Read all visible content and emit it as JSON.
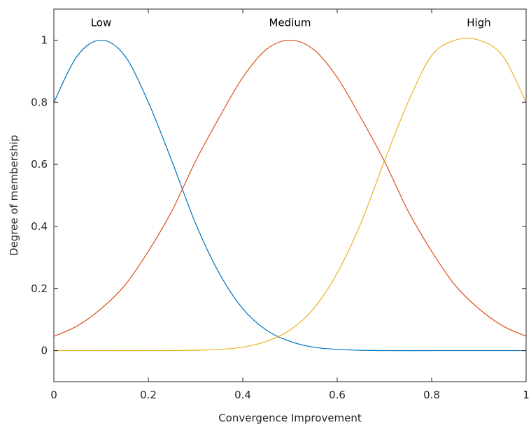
{
  "chart_data": {
    "type": "line",
    "xlabel": "Convergence Improvement",
    "ylabel": "Degree of membership",
    "xlim": [
      0,
      1
    ],
    "ylim": [
      -0.1,
      1.1
    ],
    "xticks": [
      0,
      0.2,
      0.4,
      0.6,
      0.8,
      1
    ],
    "xtick_labels": [
      "0",
      "0.2",
      "0.4",
      "0.6",
      "0.8",
      "1"
    ],
    "yticks": [
      0,
      0.2,
      0.4,
      0.6,
      0.8,
      1
    ],
    "ytick_labels": [
      "0",
      "0.2",
      "0.4",
      "0.6",
      "0.8",
      "1"
    ],
    "grid": false,
    "series": [
      {
        "name": "Low",
        "color": "#0072BD",
        "x": [
          0,
          0.05,
          0.1,
          0.15,
          0.2,
          0.25,
          0.3,
          0.35,
          0.4,
          0.45,
          0.5,
          0.55,
          0.6,
          0.65,
          0.7,
          0.8,
          0.9,
          1
        ],
        "y": [
          0.8,
          0.95,
          1.0,
          0.95,
          0.8,
          0.61,
          0.41,
          0.25,
          0.135,
          0.066,
          0.03,
          0.011,
          0.004,
          0.001,
          0.0,
          0.0,
          0.0,
          0.0
        ]
      },
      {
        "name": "Medium",
        "color": "#D95319",
        "x": [
          0,
          0.05,
          0.1,
          0.15,
          0.2,
          0.25,
          0.3,
          0.35,
          0.4,
          0.45,
          0.5,
          0.55,
          0.6,
          0.65,
          0.7,
          0.75,
          0.8,
          0.85,
          0.9,
          0.95,
          1
        ],
        "y": [
          0.046,
          0.08,
          0.135,
          0.21,
          0.32,
          0.45,
          0.61,
          0.75,
          0.88,
          0.97,
          1.0,
          0.97,
          0.88,
          0.75,
          0.61,
          0.45,
          0.32,
          0.21,
          0.135,
          0.08,
          0.046
        ]
      },
      {
        "name": "High",
        "color": "#EDB120",
        "x": [
          0,
          0.1,
          0.2,
          0.3,
          0.35,
          0.4,
          0.45,
          0.5,
          0.55,
          0.6,
          0.65,
          0.7,
          0.75,
          0.8,
          0.85,
          0.9,
          0.95,
          1
        ],
        "y": [
          0.0,
          0.0,
          0.0,
          0.001,
          0.004,
          0.011,
          0.03,
          0.066,
          0.135,
          0.25,
          0.41,
          0.61,
          0.8,
          0.95,
          1.0,
          1.0,
          0.95,
          0.8
        ]
      }
    ],
    "annotations": [
      {
        "text": "Low",
        "x": 0.1,
        "y": 1.045
      },
      {
        "text": "Medium",
        "x": 0.5,
        "y": 1.045
      },
      {
        "text": "High",
        "x": 0.9,
        "y": 1.045
      }
    ]
  }
}
